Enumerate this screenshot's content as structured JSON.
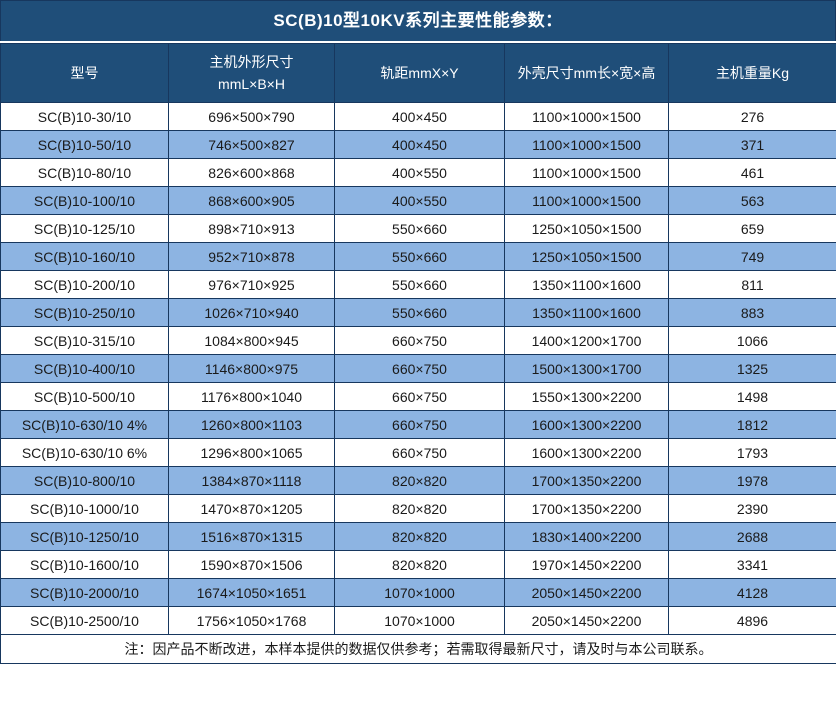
{
  "title": "SC(B)10型10KV系列主要性能参数：",
  "colors": {
    "title_bg": "#1F4E79",
    "header_bg": "#1F4E79",
    "header_text": "#FFFFFF",
    "row_bg": "#FFFFFF",
    "row_alt_bg": "#8DB4E2",
    "border": "#17375E",
    "body_text": "#1A1A1A"
  },
  "table": {
    "columns": [
      "型号",
      "主机外形尺寸\nmmL×B×H",
      "轨距mmX×Y",
      "外壳尺寸mm长×宽×高",
      "主机重量Kg"
    ],
    "rows": [
      [
        "SC(B)10-30/10",
        "696×500×790",
        "400×450",
        "1100×1000×1500",
        "276"
      ],
      [
        "SC(B)10-50/10",
        "746×500×827",
        "400×450",
        "1100×1000×1500",
        "371"
      ],
      [
        "SC(B)10-80/10",
        "826×600×868",
        "400×550",
        "1100×1000×1500",
        "461"
      ],
      [
        "SC(B)10-100/10",
        "868×600×905",
        "400×550",
        "1100×1000×1500",
        "563"
      ],
      [
        "SC(B)10-125/10",
        "898×710×913",
        "550×660",
        "1250×1050×1500",
        "659"
      ],
      [
        "SC(B)10-160/10",
        "952×710×878",
        "550×660",
        "1250×1050×1500",
        "749"
      ],
      [
        "SC(B)10-200/10",
        "976×710×925",
        "550×660",
        "1350×1100×1600",
        "811"
      ],
      [
        "SC(B)10-250/10",
        "1026×710×940",
        "550×660",
        "1350×1100×1600",
        "883"
      ],
      [
        "SC(B)10-315/10",
        "1084×800×945",
        "660×750",
        "1400×1200×1700",
        "1066"
      ],
      [
        "SC(B)10-400/10",
        "1146×800×975",
        "660×750",
        "1500×1300×1700",
        "1325"
      ],
      [
        "SC(B)10-500/10",
        "1176×800×1040",
        "660×750",
        "1550×1300×2200",
        "1498"
      ],
      [
        "SC(B)10-630/10 4%",
        "1260×800×1103",
        "660×750",
        "1600×1300×2200",
        "1812"
      ],
      [
        "SC(B)10-630/10 6%",
        "1296×800×1065",
        "660×750",
        "1600×1300×2200",
        "1793"
      ],
      [
        "SC(B)10-800/10",
        "1384×870×1118",
        "820×820",
        "1700×1350×2200",
        "1978"
      ],
      [
        "SC(B)10-1000/10",
        "1470×870×1205",
        "820×820",
        "1700×1350×2200",
        "2390"
      ],
      [
        "SC(B)10-1250/10",
        "1516×870×1315",
        "820×820",
        "1830×1400×2200",
        "2688"
      ],
      [
        "SC(B)10-1600/10",
        "1590×870×1506",
        "820×820",
        "1970×1450×2200",
        "3341"
      ],
      [
        "SC(B)10-2000/10",
        "1674×1050×1651",
        "1070×1000",
        "2050×1450×2200",
        "4128"
      ],
      [
        "SC(B)10-2500/10",
        "1756×1050×1768",
        "1070×1000",
        "2050×1450×2200",
        "4896"
      ]
    ]
  },
  "note": "注：因产品不断改进，本样本提供的数据仅供参考；若需取得最新尺寸，请及时与本公司联系。"
}
